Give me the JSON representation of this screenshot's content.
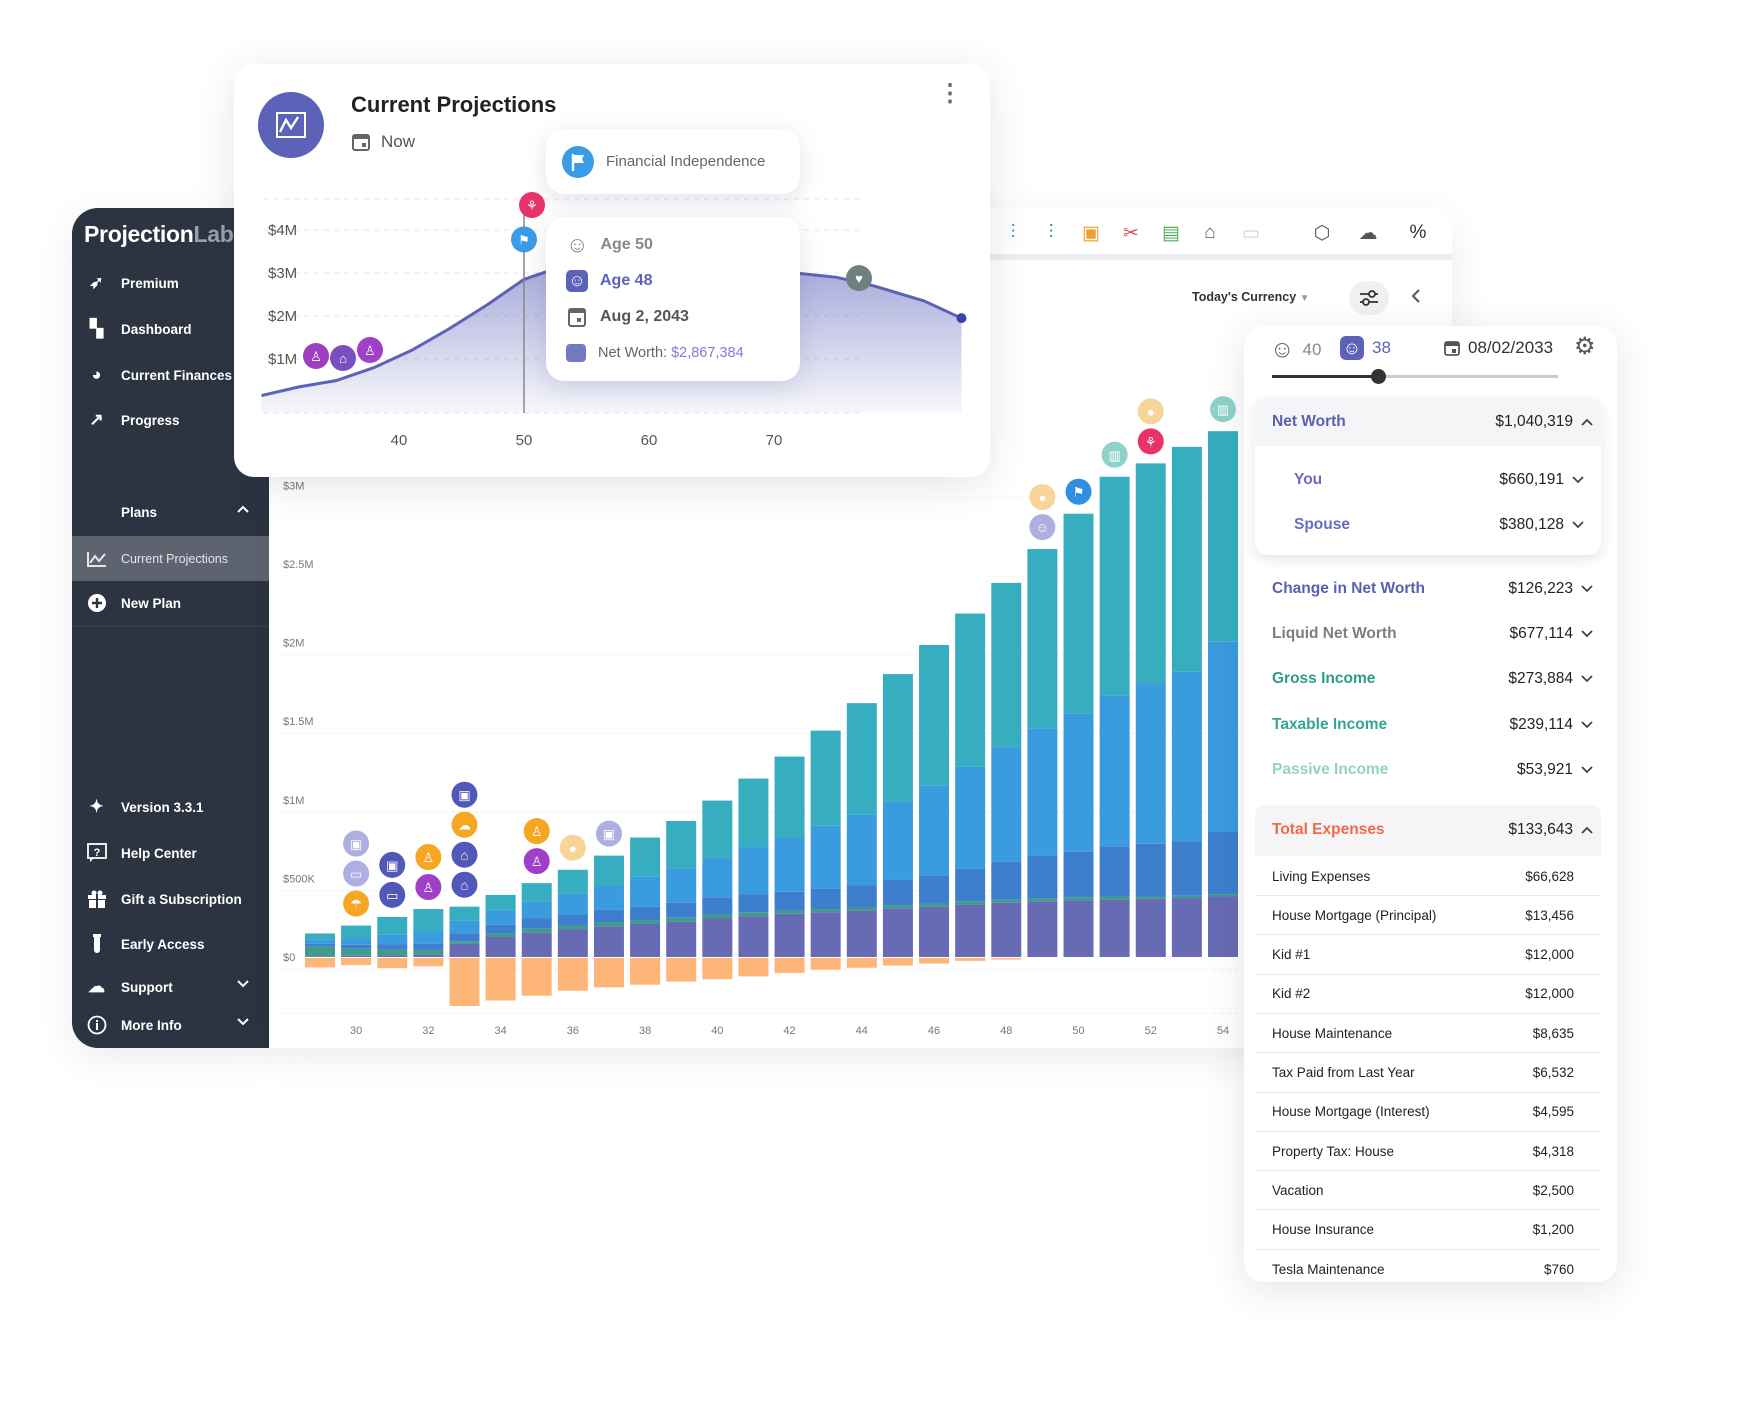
{
  "sidebar": {
    "logo_main": "Projection",
    "logo_accent": "Lab",
    "items": [
      {
        "label": "Premium",
        "icon": "rocket-icon"
      },
      {
        "label": "Dashboard",
        "icon": "dashboard-icon"
      },
      {
        "label": "Current Finances",
        "icon": "donut-icon"
      },
      {
        "label": "Progress",
        "icon": "progress-icon"
      }
    ],
    "plans_label": "Plans",
    "plans": [
      {
        "label": "Current Projections",
        "icon": "chart-icon",
        "active": true
      },
      {
        "label": "New Plan",
        "icon": "plus-circle-icon"
      }
    ],
    "bottom_items": [
      {
        "label": "Version 3.3.1",
        "icon": "sparkle-icon"
      },
      {
        "label": "Help Center",
        "icon": "help-icon"
      },
      {
        "label": "Gift a Subscription",
        "icon": "gift-icon"
      },
      {
        "label": "Early Access",
        "icon": "test-tube-icon"
      },
      {
        "label": "Support",
        "icon": "support-icon",
        "expandable": true
      },
      {
        "label": "More Info",
        "icon": "info-icon",
        "expandable": true
      }
    ]
  },
  "toolbar": {
    "icons": [
      {
        "name": "cash-flow-chart-icon",
        "color": "#3a9bde"
      },
      {
        "name": "income-chart-icon",
        "color": "#2e9c8a"
      },
      {
        "name": "expense-icon",
        "color": "#f0a030"
      },
      {
        "name": "tax-cut-icon",
        "color": "#e54848"
      },
      {
        "name": "certificate-icon",
        "color": "#4caf50"
      },
      {
        "name": "bank-transfer-icon",
        "color": "#555555"
      },
      {
        "name": "disabled-chart-icon",
        "color": "#d5d5d5"
      },
      {
        "name": "3d-view-icon",
        "color": "#555555"
      },
      {
        "name": "cloud-off-icon",
        "color": "#555555"
      },
      {
        "name": "monte-carlo-icon",
        "color": "#333333"
      }
    ],
    "currency_label": "Today's Currency"
  },
  "card": {
    "title": "Current Projections",
    "date_label": "Now",
    "milestone": "Financial Independence",
    "tooltip": {
      "age_you": "Age 50",
      "age_spouse": "Age 48",
      "date": "Aug 2, 2043",
      "net_worth_label": "Net Worth: ",
      "net_worth_value": "$2,867,384"
    }
  },
  "right_panel": {
    "age_you": "40",
    "age_spouse": "38",
    "date": "08/02/2033",
    "slider_position": 0.37,
    "net_worth": {
      "label": "Net Worth",
      "value": "$1,040,319"
    },
    "net_worth_breakdown": [
      {
        "label": "You",
        "value": "$660,191"
      },
      {
        "label": "Spouse",
        "value": "$380,128"
      }
    ],
    "metrics": [
      {
        "label": "Change in Net Worth",
        "value": "$126,223",
        "color": "#5a5fb0"
      },
      {
        "label": "Liquid Net Worth",
        "value": "$677,114",
        "color": "#7d7d82"
      },
      {
        "label": "Gross Income",
        "value": "$273,884",
        "color": "#2e9c8a"
      },
      {
        "label": "Taxable Income",
        "value": "$239,114",
        "color": "#33a592"
      },
      {
        "label": "Passive Income",
        "value": "$53,921",
        "color": "#8fd2c7"
      }
    ],
    "total_expenses": {
      "label": "Total Expenses",
      "value": "$133,643",
      "color": "#f06a4a"
    },
    "expenses": [
      {
        "label": "Living Expenses",
        "value": "$66,628"
      },
      {
        "label": "House Mortgage (Principal)",
        "value": "$13,456"
      },
      {
        "label": "Kid #1",
        "value": "$12,000"
      },
      {
        "label": "Kid #2",
        "value": "$12,000"
      },
      {
        "label": "House Maintenance",
        "value": "$8,635"
      },
      {
        "label": "Tax Paid from Last Year",
        "value": "$6,532"
      },
      {
        "label": "House Mortgage (Interest)",
        "value": "$4,595"
      },
      {
        "label": "Property Tax: House",
        "value": "$4,318"
      },
      {
        "label": "Vacation",
        "value": "$2,500"
      },
      {
        "label": "House Insurance",
        "value": "$1,200"
      },
      {
        "label": "Tesla Maintenance",
        "value": "$760"
      }
    ]
  },
  "colors": {
    "accent": "#5c62b8",
    "sidebar": "#2c3442"
  },
  "chart_data": [
    {
      "type": "line",
      "x_ticks": [
        40,
        50,
        60,
        70
      ],
      "y_ticks": [
        "$1M",
        "$2M",
        "$3M",
        "$4M"
      ],
      "y_tick_values": [
        1,
        2,
        3,
        4
      ],
      "ylim": [
        0,
        4.9
      ],
      "x": [
        29,
        32,
        35,
        38,
        41,
        44,
        47,
        50,
        52,
        55,
        60,
        65,
        70,
        75,
        78,
        82,
        85
      ],
      "y": [
        0.15,
        0.35,
        0.5,
        0.8,
        1.2,
        1.7,
        2.25,
        2.85,
        3.05,
        3.15,
        3.2,
        3.15,
        3.05,
        2.9,
        2.7,
        2.35,
        1.95
      ],
      "highlight_x": 50,
      "color": "#5c62b8",
      "grid": true,
      "markers": [
        {
          "age": 32,
          "icon": "kid-icon",
          "color": "#9c3fc0"
        },
        {
          "age": 33,
          "icon": "house-search-icon",
          "color": "#7a4fc0"
        },
        {
          "age": 35,
          "icon": "kid-icon",
          "color": "#a040c8"
        },
        {
          "age": 50,
          "icon": "flag-icon",
          "color": "#3a9be6"
        },
        {
          "age": 52,
          "icon": "palm-icon",
          "color": "#e8336a"
        },
        {
          "age": 85,
          "icon": "heartbeat-icon",
          "color": "#6f8080"
        }
      ]
    },
    {
      "type": "bar",
      "stacked": true,
      "categories": [
        29,
        30,
        31,
        32,
        33,
        34,
        35,
        36,
        37,
        38,
        39,
        40,
        41,
        42,
        43,
        44,
        45,
        46,
        47,
        48,
        49,
        50,
        51,
        52,
        53,
        54
      ],
      "x_ticks": [
        30,
        32,
        34,
        36,
        38,
        40,
        42,
        44,
        46,
        48,
        50,
        52,
        54
      ],
      "y_ticks": [
        "$0",
        "$500K",
        "$1M",
        "$1.5M",
        "$2M",
        "$2.5M",
        "$3M"
      ],
      "y_tick_values": [
        0,
        500,
        1000,
        1500,
        2000,
        2500,
        3000
      ],
      "unit": "thousands USD",
      "grid": true,
      "series": [
        {
          "color": "#676bb3",
          "values": [
            5,
            8,
            12,
            15,
            85,
            130,
            155,
            175,
            195,
            210,
            225,
            245,
            260,
            275,
            285,
            295,
            310,
            320,
            335,
            345,
            355,
            360,
            365,
            370,
            375,
            385
          ]
        },
        {
          "color": "#3f9b8a",
          "values": [
            60,
            45,
            35,
            30,
            15,
            20,
            25,
            25,
            25,
            25,
            25,
            25,
            25,
            20,
            20,
            20,
            20,
            20,
            20,
            20,
            20,
            20,
            20,
            15,
            15,
            15
          ]
        },
        {
          "color": "#3d7fcd",
          "values": [
            20,
            25,
            35,
            40,
            50,
            55,
            65,
            70,
            80,
            85,
            95,
            110,
            115,
            120,
            130,
            140,
            160,
            180,
            205,
            240,
            270,
            290,
            320,
            335,
            345,
            395
          ]
        },
        {
          "color": "#3a9bde",
          "values": [
            25,
            40,
            60,
            80,
            80,
            95,
            110,
            135,
            155,
            190,
            220,
            255,
            300,
            345,
            400,
            450,
            500,
            570,
            650,
            730,
            810,
            880,
            960,
            1020,
            1080,
            1210
          ]
        },
        {
          "color": "#36aec0",
          "values": [
            40,
            82,
            113,
            140,
            90,
            95,
            115,
            150,
            190,
            250,
            300,
            360,
            435,
            515,
            605,
            710,
            810,
            895,
            975,
            1045,
            1140,
            1270,
            1390,
            1400,
            1430,
            1340
          ]
        },
        {
          "color": "#fdb677",
          "values": [
            -60,
            -45,
            -64,
            -53,
            -305,
            -270,
            -240,
            -208,
            -187,
            -170,
            -150,
            -135,
            -117,
            -95,
            -75,
            -62,
            -48,
            -35,
            -18,
            -10,
            0,
            0,
            0,
            0,
            0,
            0
          ]
        }
      ],
      "events": [
        {
          "age": 30,
          "icon": "bag-icon",
          "color": "#aeaee0"
        },
        {
          "age": 30,
          "icon": "bus-icon",
          "color": "#aeaee0"
        },
        {
          "age": 30,
          "icon": "beach-icon",
          "color": "#f5a623"
        },
        {
          "age": 31,
          "icon": "bag-icon",
          "color": "#5258b8"
        },
        {
          "age": 31,
          "icon": "car-icon",
          "color": "#5258b8"
        },
        {
          "age": 32,
          "icon": "kid-icon",
          "color": "#f5a623"
        },
        {
          "age": 32,
          "icon": "kid-icon",
          "color": "#a040c8"
        },
        {
          "age": 33,
          "icon": "bag-icon",
          "color": "#5258b8"
        },
        {
          "age": 33,
          "icon": "cloud-icon",
          "color": "#f5a623"
        },
        {
          "age": 33,
          "icon": "home-icon",
          "color": "#5258b8"
        },
        {
          "age": 33,
          "icon": "house-search-icon",
          "color": "#5258b8"
        },
        {
          "age": 35,
          "icon": "kid-icon",
          "color": "#f5a623"
        },
        {
          "age": 35,
          "icon": "kid-icon",
          "color": "#a040c8"
        },
        {
          "age": 36,
          "icon": "coin-icon",
          "color": "#f8d39a"
        },
        {
          "age": 37,
          "icon": "bag-icon",
          "color": "#aeaee0"
        },
        {
          "age": 49,
          "icon": "coin-icon",
          "color": "#f8d39a"
        },
        {
          "age": 49,
          "icon": "people-icon",
          "color": "#aeaee0"
        },
        {
          "age": 50,
          "icon": "flag-icon",
          "color": "#2f8fe0"
        },
        {
          "age": 51,
          "icon": "building-icon",
          "color": "#8fd2c7"
        },
        {
          "age": 52,
          "icon": "coin-icon",
          "color": "#f8d39a"
        },
        {
          "age": 52,
          "icon": "palm-icon",
          "color": "#e8336a"
        },
        {
          "age": 54,
          "icon": "building-icon",
          "color": "#8fd2c7"
        }
      ]
    }
  ]
}
